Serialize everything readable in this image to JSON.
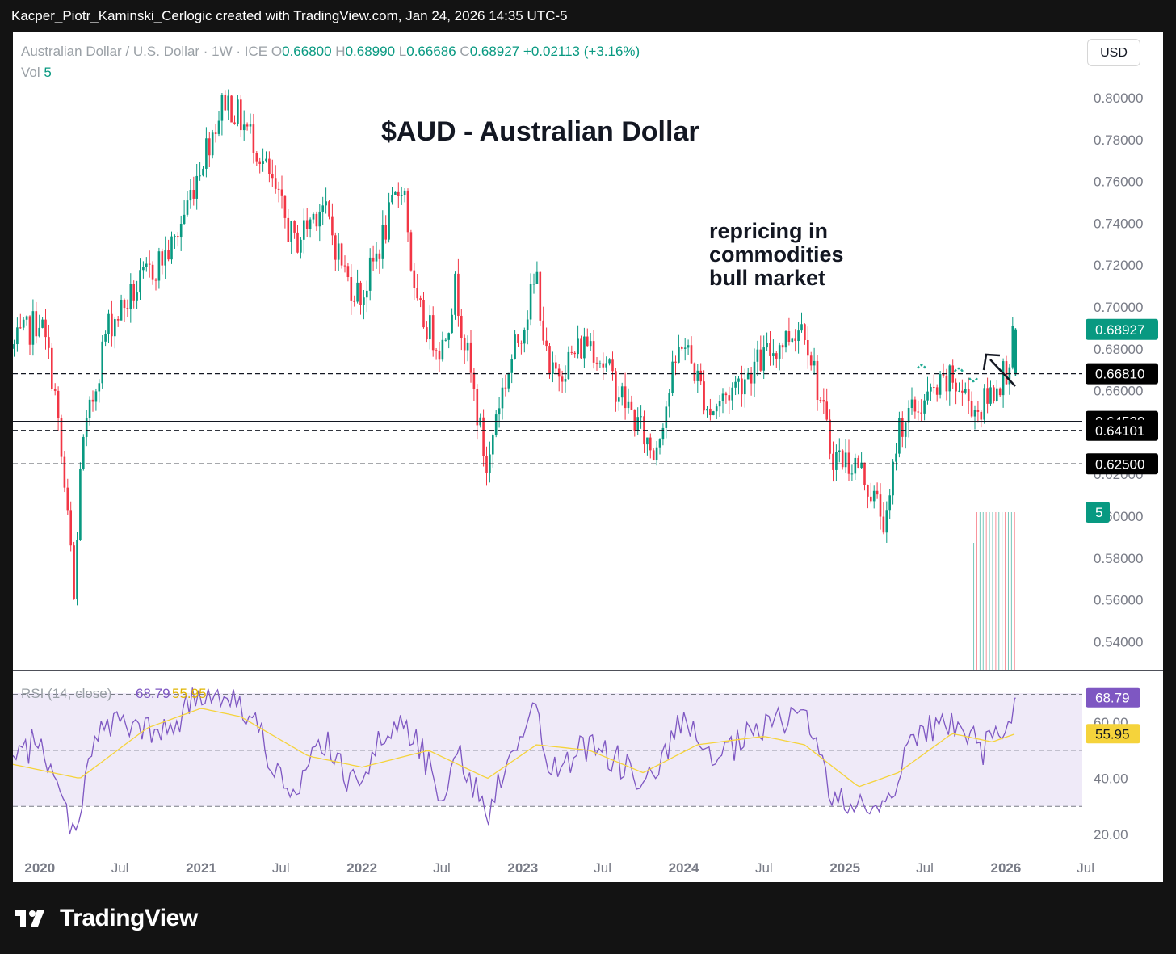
{
  "header": {
    "attribution": "Kacper_Piotr_Kaminski_Cerlogic created with TradingView.com, Jan 24, 2026 14:35 UTC-5"
  },
  "legend": {
    "symbol": "Australian Dollar / U.S. Dollar · 1W · ICE",
    "open_label": "O",
    "open": "0.66800",
    "high_label": "H",
    "high": "0.68990",
    "low_label": "L",
    "low": "0.66686",
    "close_label": "C",
    "close": "0.68927",
    "change": "+0.02113 (+3.16%)",
    "vol_label": "Vol",
    "vol": "5"
  },
  "currency_button": "USD",
  "title": "$AUD - Australian Dollar",
  "annotation": [
    "repricing in",
    "commodities",
    "bull market"
  ],
  "rsi_legend": {
    "label": "RSI (14, close)",
    "rsi": "68.79",
    "ma": "55.95"
  },
  "colors": {
    "up": "#089981",
    "down": "#f23645",
    "rsi": "#7e57c2",
    "rsi_ma": "#f5d33b",
    "rsi_band": "#7e57c2"
  },
  "footer": {
    "brand": "TradingView",
    "logo_icon": "tradingview-logo-icon"
  },
  "chart_data": {
    "type": "candlestick",
    "price_axis": [
      "0.80000",
      "0.78000",
      "0.76000",
      "0.74000",
      "0.72000",
      "0.70000",
      "0.68000",
      "0.66000",
      "0.64000",
      "0.62000",
      "0.60000",
      "0.58000",
      "0.56000",
      "0.54000"
    ],
    "price_labels": [
      {
        "value": "0.68927",
        "price": 0.68927,
        "style": "last"
      },
      {
        "value": "0.66810",
        "price": 0.6681,
        "style": "line"
      },
      {
        "value": "0.64530",
        "price": 0.6453,
        "style": "line"
      },
      {
        "value": "0.64101",
        "price": 0.64101,
        "style": "line"
      },
      {
        "value": "0.62500",
        "price": 0.625,
        "style": "line"
      },
      {
        "value": "5",
        "style": "volume"
      }
    ],
    "horizontal_lines": [
      {
        "price": 0.6681,
        "style": "dashed"
      },
      {
        "price": 0.6453,
        "style": "solid"
      },
      {
        "price": 0.64101,
        "style": "dashed"
      },
      {
        "price": 0.625,
        "style": "dashed"
      }
    ],
    "time_axis": [
      {
        "label": "2020",
        "bold": true
      },
      {
        "label": "Jul",
        "bold": false
      },
      {
        "label": "2021",
        "bold": true
      },
      {
        "label": "Jul",
        "bold": false
      },
      {
        "label": "2022",
        "bold": true
      },
      {
        "label": "Jul",
        "bold": false
      },
      {
        "label": "2023",
        "bold": true
      },
      {
        "label": "Jul",
        "bold": false
      },
      {
        "label": "2024",
        "bold": true
      },
      {
        "label": "Jul",
        "bold": false
      },
      {
        "label": "2025",
        "bold": true
      },
      {
        "label": "Jul",
        "bold": false
      },
      {
        "label": "2026",
        "bold": true
      },
      {
        "label": "Jul",
        "bold": false
      }
    ],
    "rsi_axis": [
      "60.00",
      "40.00",
      "20.00"
    ],
    "rsi_levels": [
      70,
      50,
      30
    ],
    "price_path": [
      [
        "2019-11",
        0.68
      ],
      [
        "2020-01",
        0.695
      ],
      [
        "2020-02",
        0.665
      ],
      [
        "2020-03-15",
        0.575
      ],
      [
        "2020-03-20",
        0.553
      ],
      [
        "2020-04",
        0.625
      ],
      [
        "2020-06",
        0.69
      ],
      [
        "2020-09",
        0.715
      ],
      [
        "2020-11",
        0.73
      ],
      [
        "2021-01",
        0.77
      ],
      [
        "2021-02-25",
        0.8
      ],
      [
        "2021-05",
        0.78
      ],
      [
        "2021-08",
        0.73
      ],
      [
        "2021-10",
        0.75
      ],
      [
        "2021-12",
        0.712
      ],
      [
        "2022-01",
        0.705
      ],
      [
        "2022-04-05",
        0.762
      ],
      [
        "2022-05",
        0.7
      ],
      [
        "2022-07",
        0.68
      ],
      [
        "2022-08",
        0.71
      ],
      [
        "2022-10-13",
        0.62
      ],
      [
        "2022-11",
        0.65
      ],
      [
        "2023-02-02",
        0.714
      ],
      [
        "2023-03",
        0.665
      ],
      [
        "2023-06",
        0.685
      ],
      [
        "2023-10-25",
        0.63
      ],
      [
        "2023-12-28",
        0.685
      ],
      [
        "2024-03",
        0.65
      ],
      [
        "2024-06",
        0.67
      ],
      [
        "2024-09-30",
        0.693
      ],
      [
        "2024-12",
        0.63
      ],
      [
        "2025-02",
        0.624
      ],
      [
        "2025-04-07",
        0.595
      ],
      [
        "2025-05",
        0.643
      ],
      [
        "2025-07",
        0.655
      ],
      [
        "2025-09",
        0.665
      ],
      [
        "2025-11",
        0.65
      ],
      [
        "2026-01",
        0.67
      ],
      [
        "2026-01-23",
        0.689
      ]
    ],
    "rsi_path": [
      [
        "2019-11",
        45
      ],
      [
        "2020-01",
        55
      ],
      [
        "2020-02",
        40
      ],
      [
        "2020-03-20",
        20
      ],
      [
        "2020-05",
        55
      ],
      [
        "2020-07",
        60
      ],
      [
        "2020-10",
        55
      ],
      [
        "2021-01",
        70
      ],
      [
        "2021-02-25",
        72
      ],
      [
        "2021-05",
        60
      ],
      [
        "2021-08",
        30
      ],
      [
        "2021-10",
        55
      ],
      [
        "2021-12",
        38
      ],
      [
        "2022-04-05",
        62
      ],
      [
        "2022-07",
        35
      ],
      [
        "2022-08",
        50
      ],
      [
        "2022-10-13",
        27
      ],
      [
        "2022-12",
        50
      ],
      [
        "2023-02-02",
        65
      ],
      [
        "2023-03",
        42
      ],
      [
        "2023-06",
        52
      ],
      [
        "2023-10-25",
        38
      ],
      [
        "2023-12-28",
        62
      ],
      [
        "2024-03",
        45
      ],
      [
        "2024-06",
        55
      ],
      [
        "2024-09-30",
        65
      ],
      [
        "2024-12",
        35
      ],
      [
        "2025-01-15",
        28
      ],
      [
        "2025-04-07",
        32
      ],
      [
        "2025-06",
        55
      ],
      [
        "2025-08",
        58
      ],
      [
        "2025-10",
        60
      ],
      [
        "2025-11",
        48
      ],
      [
        "2026-01",
        58
      ],
      [
        "2026-01-23",
        68.79
      ]
    ],
    "rsi_ma_path": [
      [
        "2019-11",
        45
      ],
      [
        "2020-04",
        40
      ],
      [
        "2020-09",
        58
      ],
      [
        "2021-01",
        65
      ],
      [
        "2021-04",
        62
      ],
      [
        "2021-09",
        48
      ],
      [
        "2022-01",
        44
      ],
      [
        "2022-06",
        50
      ],
      [
        "2022-10-13",
        40
      ],
      [
        "2023-02",
        52
      ],
      [
        "2023-06",
        50
      ],
      [
        "2023-10",
        42
      ],
      [
        "2024-02",
        52
      ],
      [
        "2024-07",
        55
      ],
      [
        "2024-10",
        52
      ],
      [
        "2025-02",
        37
      ],
      [
        "2025-05",
        42
      ],
      [
        "2025-09",
        56
      ],
      [
        "2025-12",
        53
      ],
      [
        "2026-01-23",
        55.95
      ]
    ]
  }
}
